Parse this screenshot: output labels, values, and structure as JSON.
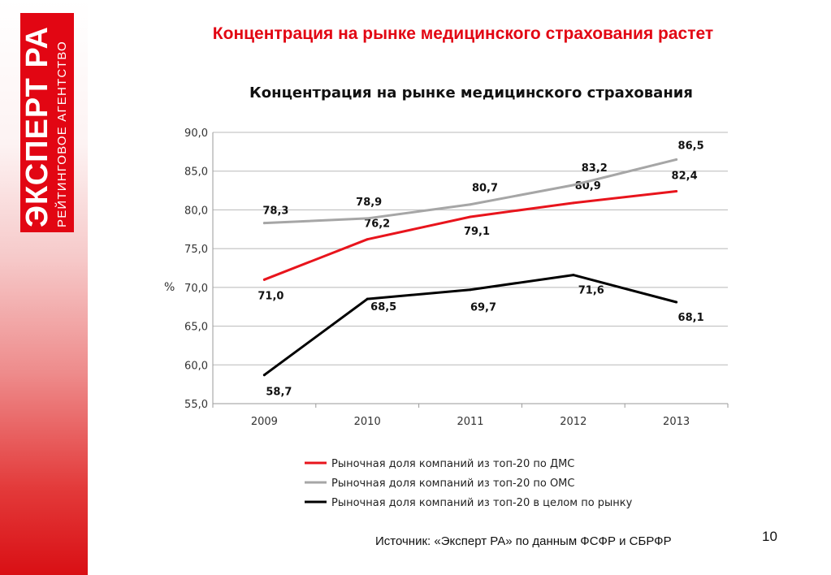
{
  "logo": {
    "main": "ЭКСПЕРТ РА",
    "sub": "РЕЙТИНГОВОЕ АГЕНТСТВО"
  },
  "slide_title": "Концентрация на рынке медицинского страхования растет",
  "source": "Источник: «Эксперт РА» по данным ФСФР и СБРФР",
  "page_number": "10",
  "colors": {
    "accent": "#e20613",
    "series_dms": "#e8141c",
    "series_oms": "#a6a6a6",
    "series_total": "#000000"
  },
  "chart_data": {
    "type": "line",
    "title": "Концентрация на рынке медицинского страхования",
    "xlabel": "",
    "ylabel": "%",
    "categories": [
      "2009",
      "2010",
      "2011",
      "2012",
      "2013"
    ],
    "ylim": [
      55.0,
      90.0
    ],
    "yticks": [
      "55,0",
      "60,0",
      "65,0",
      "70,0",
      "75,0",
      "80,0",
      "85,0",
      "90,0"
    ],
    "grid": true,
    "legend_position": "bottom",
    "series": [
      {
        "name": "Рыночная доля компаний из топ-20 по ДМС",
        "color": "#e8141c",
        "values": [
          71.0,
          76.2,
          79.1,
          80.9,
          82.4
        ],
        "labels": [
          "71,0",
          "76,2",
          "79,1",
          "80,9",
          "82,4"
        ]
      },
      {
        "name": "Рыночная доля компаний из топ-20 по ОМС",
        "color": "#a6a6a6",
        "values": [
          78.3,
          78.9,
          80.7,
          83.2,
          86.5
        ],
        "labels": [
          "78,3",
          "78,9",
          "80,7",
          "83,2",
          "86,5"
        ]
      },
      {
        "name": "Рыночная доля компаний из топ-20 в целом по рынку",
        "color": "#000000",
        "values": [
          58.7,
          68.5,
          69.7,
          71.6,
          68.1
        ],
        "labels": [
          "58,7",
          "68,5",
          "69,7",
          "71,6",
          "68,1"
        ]
      }
    ]
  }
}
